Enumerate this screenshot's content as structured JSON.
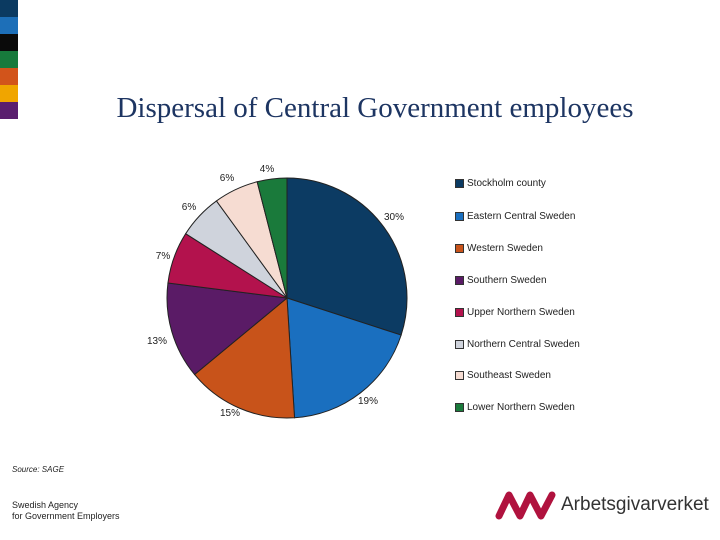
{
  "title": "Dispersal of Central Government employees",
  "stripes": [
    "#0b3a61",
    "#1d6fb8",
    "#0a0a0a",
    "#177a3c",
    "#d2541b",
    "#f0a500",
    "#5a1e6e"
  ],
  "chart_data": {
    "type": "pie",
    "slices": [
      {
        "name": "Stockholm county",
        "value": 30,
        "label": "30%",
        "color": "#0c3b63"
      },
      {
        "name": "Eastern Central Sweden",
        "value": 19,
        "label": "19%",
        "color": "#1a6fbf"
      },
      {
        "name": "Western Sweden",
        "value": 15,
        "label": "15%",
        "color": "#c8531a"
      },
      {
        "name": "Southern Sweden",
        "value": 13,
        "label": "13%",
        "color": "#5a1b66"
      },
      {
        "name": "Upper Northern Sweden",
        "value": 7,
        "label": "7%",
        "color": "#b3124d"
      },
      {
        "name": "Northern Central Sweden",
        "value": 6,
        "label": "6%",
        "color": "#cfd3dc"
      },
      {
        "name": "Southeast Sweden",
        "value": 6,
        "label": "6%",
        "color": "#f6dcd2"
      },
      {
        "name": "Lower Northern Sweden",
        "value": 4,
        "label": "4%",
        "color": "#1a7a3b"
      }
    ],
    "legend_placement": "right"
  },
  "footer": {
    "source": "Source: SAGE",
    "agency_line1": "Swedish Agency",
    "agency_line2": "for Government Employers",
    "logo_text": "Arbetsgivarverket",
    "logo_color": "#b0123e"
  }
}
